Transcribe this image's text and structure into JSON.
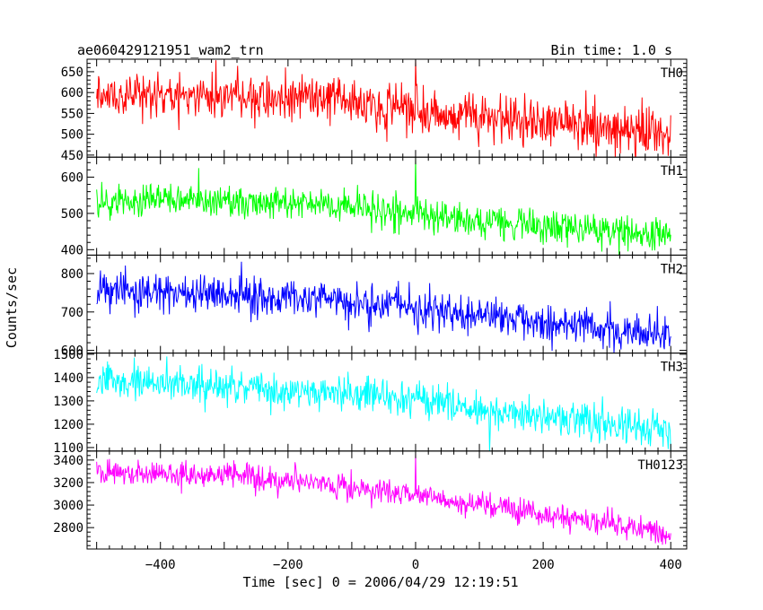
{
  "header": {
    "title": "ae060429121951_wam2_trn",
    "bin_time": "Bin time: 1.0 s"
  },
  "chart_data": {
    "type": "line",
    "title": "ae060429121951_wam2_trn",
    "xlabel": "Time [sec] 0 = 2006/04/29 12:19:51",
    "ylabel": "Counts/sec",
    "xlim": [
      -515,
      425
    ],
    "x_ticks": [
      -400,
      -200,
      0,
      200,
      400
    ],
    "x_range": [
      -500,
      400
    ],
    "bin_time_s": 1.0,
    "grid": false,
    "panels": [
      {
        "name": "TH0",
        "color": "#ff0000",
        "ylim": [
          445,
          680
        ],
        "y_ticks": [
          450,
          500,
          550,
          600,
          650
        ],
        "trend": [
          [
            -500,
            590
          ],
          [
            -300,
            590
          ],
          [
            -100,
            575
          ],
          [
            100,
            545
          ],
          [
            400,
            505
          ]
        ],
        "noise_sd": 28,
        "spike": {
          "x": 0,
          "y": 680
        }
      },
      {
        "name": "TH1",
        "color": "#00ff00",
        "ylim": [
          385,
          655
        ],
        "y_ticks": [
          400,
          500,
          600
        ],
        "trend": [
          [
            -500,
            535
          ],
          [
            -300,
            535
          ],
          [
            -100,
            518
          ],
          [
            100,
            478
          ],
          [
            400,
            440
          ]
        ],
        "noise_sd": 24,
        "spike": {
          "x": 0,
          "y": 655
        }
      },
      {
        "name": "TH2",
        "color": "#0000ff",
        "ylim": [
          593,
          848
        ],
        "y_ticks": [
          600,
          700,
          800
        ],
        "trend": [
          [
            -500,
            755
          ],
          [
            -300,
            750
          ],
          [
            -100,
            728
          ],
          [
            100,
            690
          ],
          [
            400,
            640
          ]
        ],
        "noise_sd": 26,
        "spike": null
      },
      {
        "name": "TH3",
        "color": "#00ffff",
        "ylim": [
          1085,
          1505
        ],
        "y_ticks": [
          1100,
          1200,
          1300,
          1400,
          1500
        ],
        "trend": [
          [
            -500,
            1385
          ],
          [
            -300,
            1365
          ],
          [
            -100,
            1330
          ],
          [
            100,
            1265
          ],
          [
            400,
            1170
          ]
        ],
        "noise_sd": 40,
        "spike": null
      },
      {
        "name": "TH0123",
        "color": "#ff00ff",
        "ylim": [
          2610,
          3480
        ],
        "y_ticks": [
          2800,
          3000,
          3200,
          3400
        ],
        "trend": [
          [
            -500,
            3300
          ],
          [
            -300,
            3260
          ],
          [
            -100,
            3170
          ],
          [
            100,
            3010
          ],
          [
            400,
            2740
          ]
        ],
        "noise_sd": 55,
        "spike": {
          "x": 0,
          "y": 3460
        }
      }
    ]
  }
}
